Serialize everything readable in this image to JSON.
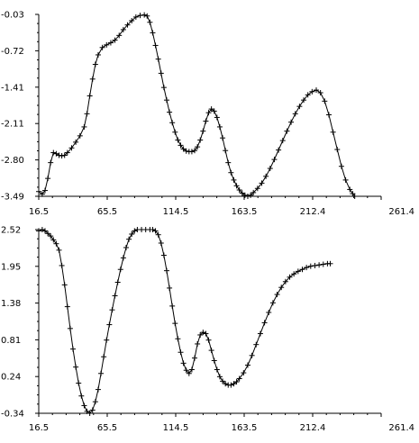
{
  "chart_data": [
    {
      "type": "line",
      "marker": "plus",
      "grid": false,
      "xlim": [
        16.5,
        261.4
      ],
      "ylim": [
        -3.49,
        -0.03
      ],
      "x_ticks": [
        "16.5",
        "65.5",
        "114.5",
        "163.5",
        "212.4",
        "261.4"
      ],
      "y_ticks": [
        "-0.03",
        "-0.72",
        "-1.41",
        "-2.11",
        "-2.80",
        "-3.49"
      ],
      "points": [
        [
          16.5,
          -3.4
        ],
        [
          19,
          -3.45
        ],
        [
          21,
          -3.38
        ],
        [
          23,
          -3.15
        ],
        [
          25,
          -2.85
        ],
        [
          27,
          -2.66
        ],
        [
          29,
          -2.68
        ],
        [
          31,
          -2.71
        ],
        [
          33,
          -2.72
        ],
        [
          35,
          -2.71
        ],
        [
          37,
          -2.66
        ],
        [
          40,
          -2.57
        ],
        [
          43,
          -2.46
        ],
        [
          46,
          -2.34
        ],
        [
          49,
          -2.17
        ],
        [
          51,
          -1.92
        ],
        [
          53,
          -1.58
        ],
        [
          55,
          -1.26
        ],
        [
          57,
          -0.98
        ],
        [
          59,
          -0.8
        ],
        [
          62,
          -0.66
        ],
        [
          65,
          -0.61
        ],
        [
          68,
          -0.57
        ],
        [
          71,
          -0.52
        ],
        [
          74,
          -0.43
        ],
        [
          77,
          -0.32
        ],
        [
          80,
          -0.23
        ],
        [
          83,
          -0.15
        ],
        [
          86,
          -0.08
        ],
        [
          89,
          -0.05
        ],
        [
          92,
          -0.04
        ],
        [
          94,
          -0.06
        ],
        [
          96,
          -0.18
        ],
        [
          98,
          -0.38
        ],
        [
          100,
          -0.62
        ],
        [
          102,
          -0.88
        ],
        [
          104,
          -1.15
        ],
        [
          106,
          -1.42
        ],
        [
          108,
          -1.66
        ],
        [
          110,
          -1.89
        ],
        [
          112,
          -2.09
        ],
        [
          114,
          -2.27
        ],
        [
          116,
          -2.42
        ],
        [
          118,
          -2.52
        ],
        [
          120,
          -2.59
        ],
        [
          122,
          -2.63
        ],
        [
          124,
          -2.64
        ],
        [
          126,
          -2.64
        ],
        [
          128,
          -2.62
        ],
        [
          130,
          -2.55
        ],
        [
          132,
          -2.42
        ],
        [
          134,
          -2.25
        ],
        [
          136,
          -2.06
        ],
        [
          138,
          -1.9
        ],
        [
          140,
          -1.83
        ],
        [
          142,
          -1.87
        ],
        [
          144,
          -1.99
        ],
        [
          146,
          -2.17
        ],
        [
          148,
          -2.38
        ],
        [
          150,
          -2.62
        ],
        [
          152,
          -2.85
        ],
        [
          154,
          -3.04
        ],
        [
          156,
          -3.18
        ],
        [
          158,
          -3.29
        ],
        [
          160,
          -3.37
        ],
        [
          162,
          -3.43
        ],
        [
          164,
          -3.47
        ],
        [
          166,
          -3.49
        ],
        [
          168,
          -3.47
        ],
        [
          170,
          -3.42
        ],
        [
          173,
          -3.34
        ],
        [
          176,
          -3.24
        ],
        [
          179,
          -3.11
        ],
        [
          182,
          -2.96
        ],
        [
          185,
          -2.79
        ],
        [
          188,
          -2.61
        ],
        [
          191,
          -2.43
        ],
        [
          194,
          -2.25
        ],
        [
          197,
          -2.08
        ],
        [
          200,
          -1.92
        ],
        [
          203,
          -1.78
        ],
        [
          206,
          -1.66
        ],
        [
          209,
          -1.56
        ],
        [
          212,
          -1.5
        ],
        [
          215,
          -1.47
        ],
        [
          218,
          -1.52
        ],
        [
          221,
          -1.68
        ],
        [
          224,
          -1.94
        ],
        [
          227,
          -2.27
        ],
        [
          230,
          -2.6
        ],
        [
          233,
          -2.92
        ],
        [
          236,
          -3.18
        ],
        [
          239,
          -3.36
        ],
        [
          241,
          -3.44
        ],
        [
          242.5,
          -3.49
        ]
      ]
    },
    {
      "type": "line",
      "marker": "plus",
      "grid": false,
      "xlim": [
        16.5,
        261.4
      ],
      "ylim": [
        -0.34,
        2.52
      ],
      "x_ticks": [
        "16.5",
        "65.5",
        "114.5",
        "163.5",
        "212.4",
        "261.4"
      ],
      "y_ticks": [
        "2.52",
        "1.95",
        "1.38",
        "0.81",
        "0.24",
        "-0.34"
      ],
      "points": [
        [
          16.5,
          2.5
        ],
        [
          19,
          2.52
        ],
        [
          21,
          2.5
        ],
        [
          23,
          2.46
        ],
        [
          25,
          2.42
        ],
        [
          27,
          2.36
        ],
        [
          29,
          2.3
        ],
        [
          31,
          2.2
        ],
        [
          33,
          1.96
        ],
        [
          35,
          1.66
        ],
        [
          37,
          1.32
        ],
        [
          39,
          0.98
        ],
        [
          41,
          0.66
        ],
        [
          43,
          0.38
        ],
        [
          45,
          0.13
        ],
        [
          47,
          -0.07
        ],
        [
          49,
          -0.22
        ],
        [
          51,
          -0.31
        ],
        [
          53,
          -0.34
        ],
        [
          55,
          -0.29
        ],
        [
          57,
          -0.16
        ],
        [
          59,
          0.03
        ],
        [
          61,
          0.28
        ],
        [
          63,
          0.54
        ],
        [
          65,
          0.8
        ],
        [
          67,
          1.04
        ],
        [
          69,
          1.27
        ],
        [
          71,
          1.49
        ],
        [
          73,
          1.7
        ],
        [
          75,
          1.9
        ],
        [
          77,
          2.08
        ],
        [
          79,
          2.24
        ],
        [
          81,
          2.37
        ],
        [
          83,
          2.45
        ],
        [
          85,
          2.5
        ],
        [
          87,
          2.52
        ],
        [
          90,
          2.52
        ],
        [
          93,
          2.52
        ],
        [
          96,
          2.52
        ],
        [
          98,
          2.52
        ],
        [
          100,
          2.5
        ],
        [
          102,
          2.44
        ],
        [
          104,
          2.31
        ],
        [
          106,
          2.12
        ],
        [
          108,
          1.88
        ],
        [
          110,
          1.61
        ],
        [
          112,
          1.33
        ],
        [
          114,
          1.06
        ],
        [
          116,
          0.82
        ],
        [
          118,
          0.61
        ],
        [
          120,
          0.44
        ],
        [
          122,
          0.33
        ],
        [
          124,
          0.28
        ],
        [
          126,
          0.34
        ],
        [
          128,
          0.52
        ],
        [
          130,
          0.74
        ],
        [
          132,
          0.88
        ],
        [
          134,
          0.92
        ],
        [
          136,
          0.9
        ],
        [
          138,
          0.8
        ],
        [
          140,
          0.64
        ],
        [
          142,
          0.48
        ],
        [
          144,
          0.34
        ],
        [
          146,
          0.23
        ],
        [
          148,
          0.16
        ],
        [
          150,
          0.12
        ],
        [
          152,
          0.1
        ],
        [
          154,
          0.1
        ],
        [
          156,
          0.12
        ],
        [
          158,
          0.15
        ],
        [
          160,
          0.2
        ],
        [
          163,
          0.29
        ],
        [
          166,
          0.41
        ],
        [
          169,
          0.56
        ],
        [
          172,
          0.73
        ],
        [
          175,
          0.9
        ],
        [
          178,
          1.07
        ],
        [
          181,
          1.23
        ],
        [
          184,
          1.38
        ],
        [
          187,
          1.51
        ],
        [
          190,
          1.62
        ],
        [
          193,
          1.71
        ],
        [
          196,
          1.78
        ],
        [
          199,
          1.83
        ],
        [
          202,
          1.87
        ],
        [
          205,
          1.9
        ],
        [
          208,
          1.93
        ],
        [
          211,
          1.95
        ],
        [
          214,
          1.96
        ],
        [
          217,
          1.97
        ],
        [
          220,
          1.98
        ],
        [
          223,
          1.99
        ],
        [
          225,
          1.99
        ]
      ]
    }
  ]
}
